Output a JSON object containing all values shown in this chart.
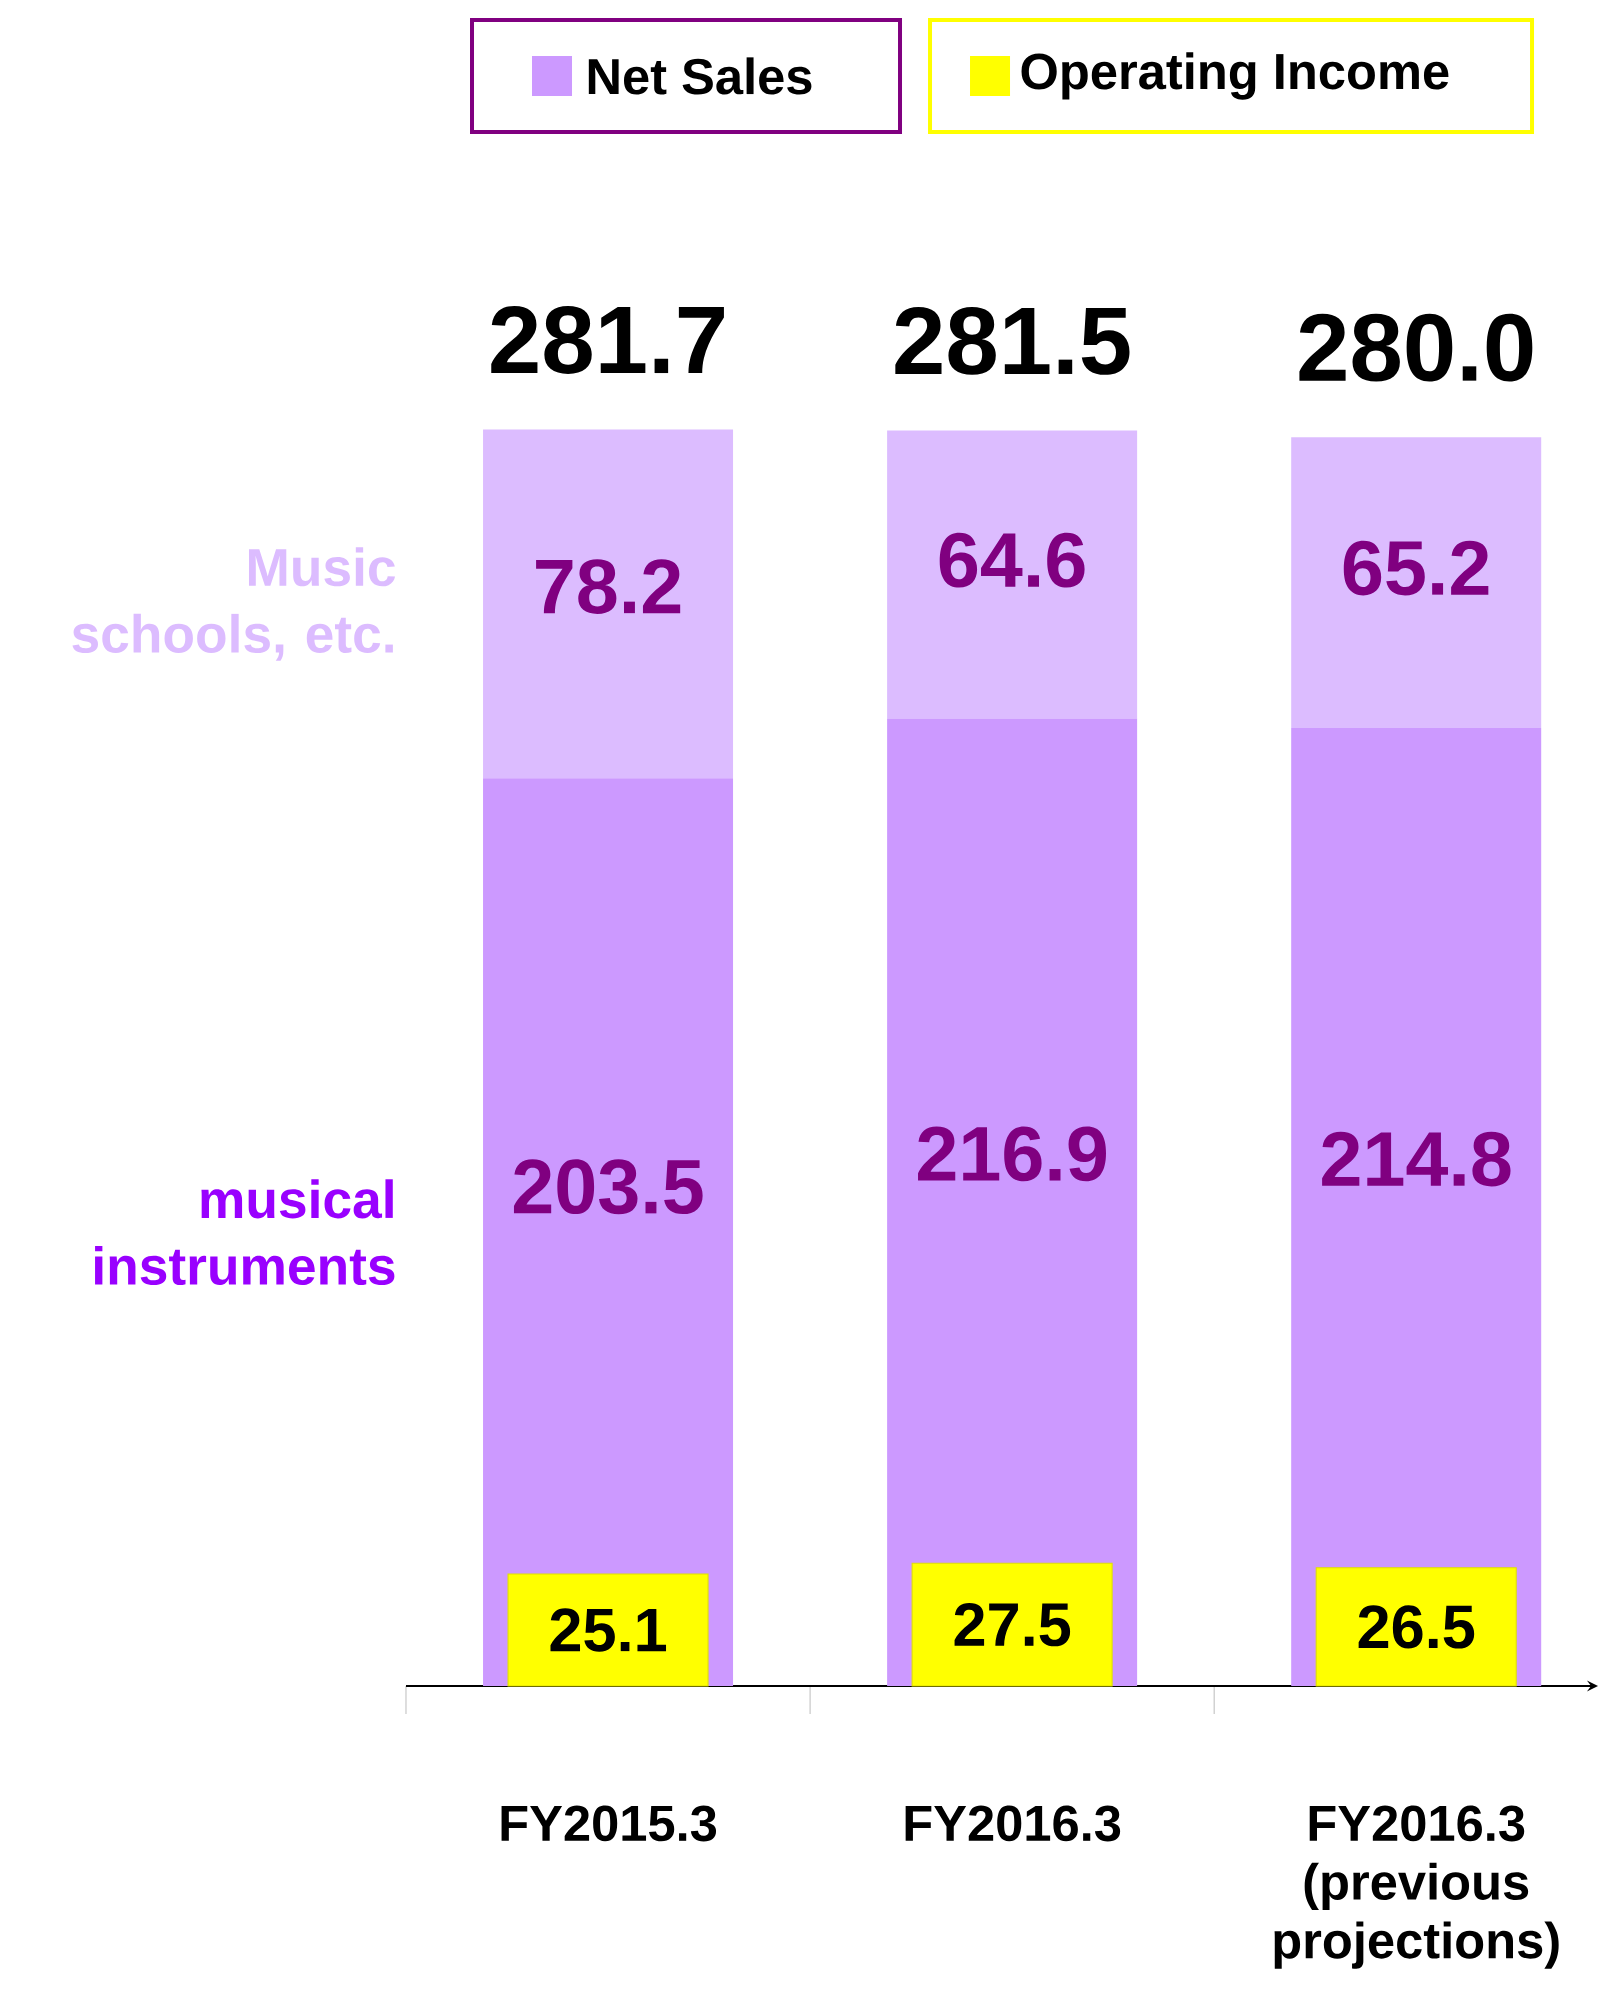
{
  "chart_data": [
    {
      "type": "bar",
      "stacked": true,
      "data_labels": true,
      "categories": [
        "FY2015.3",
        "FY2016.3",
        "FY2016.3 (previous projections)"
      ],
      "series": [
        {
          "name": "musical instruments",
          "color": "#cc99ff",
          "values": [
            203.5,
            216.9,
            214.8
          ]
        },
        {
          "name": "Music schools, etc.",
          "color": "#dcbcff",
          "values": [
            78.2,
            64.6,
            65.2
          ]
        }
      ],
      "totals": [
        "281.7",
        "281.5",
        "280.0"
      ],
      "annotations": [
        "Net Sales"
      ]
    },
    {
      "type": "bar",
      "data_labels": true,
      "legend": "top",
      "categories": [
        null,
        null,
        null
      ],
      "series": [
        {
          "name": "Operating Income",
          "color": "#ffff00",
          "values": [
            25.1,
            27.5,
            26.5
          ]
        }
      ]
    }
  ]
}
